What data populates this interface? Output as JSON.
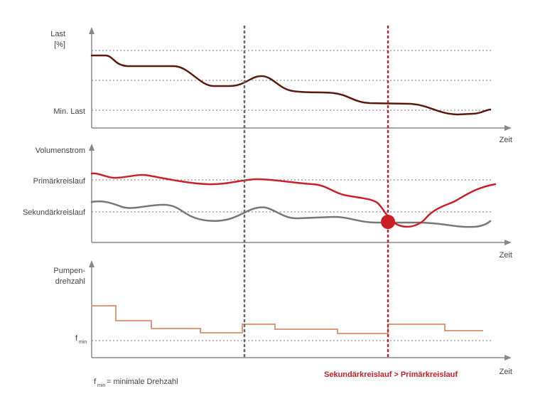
{
  "colors": {
    "axis": "#888888",
    "gridline": "#777777",
    "load_curve": "#5a1a0c",
    "primary_flow": "#c8202a",
    "secondary_flow": "#777777",
    "pump_speed": "#e0997a",
    "highlight_marker": "#cc1f26",
    "divider_gray": "#666666",
    "divider_red": "#c8202a"
  },
  "panel_load": {
    "axis_label_line1": "Last",
    "axis_label_line2": "[%]",
    "level_label": "Min. Last",
    "x_label": "Zeit"
  },
  "panel_flow": {
    "axis_label": "Volumenstrom",
    "primary_label": "Primärkreislauf",
    "secondary_label": "Sekundärkreislauf",
    "x_label": "Zeit"
  },
  "panel_pump": {
    "axis_label_line1": "Pumpen-",
    "axis_label_line2": "drehzahl",
    "fmin_main": "f",
    "fmin_sub": "min",
    "x_label": "Zeit"
  },
  "annotation": "Sekundärkreislauf > Primärkreislauf",
  "footnote": {
    "symbol": "f",
    "subscript": "min",
    "text": "= minimale Drehzahl"
  },
  "icons": {
    "axis_arrow": "triangle-arrow-icon",
    "crossing_marker": "filled-circle-icon"
  }
}
